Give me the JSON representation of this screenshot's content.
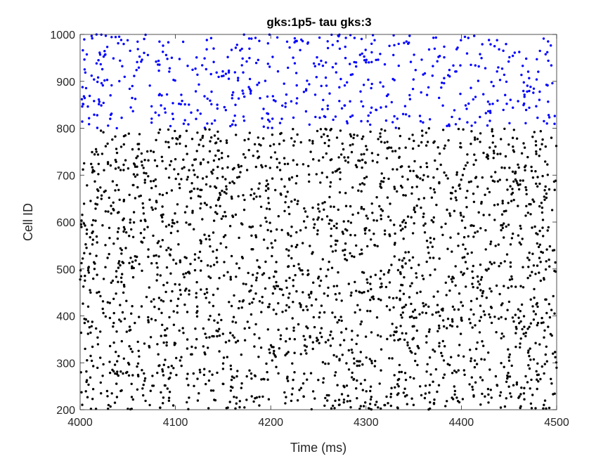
{
  "chart_data": {
    "type": "scatter",
    "title": "gks:1p5- tau gks:3",
    "xlabel": "Time (ms)",
    "ylabel": "Cell ID",
    "xlim": [
      4000,
      4500
    ],
    "ylim": [
      200,
      1000
    ],
    "xticks": [
      4000,
      4100,
      4200,
      4300,
      4400,
      4500
    ],
    "yticks": [
      200,
      300,
      400,
      500,
      600,
      700,
      800,
      900,
      1000
    ],
    "xtick_labels": [
      "4000",
      "4100",
      "4200",
      "4300",
      "4400",
      "4500"
    ],
    "ytick_labels": [
      "200",
      "300",
      "400",
      "500",
      "600",
      "700",
      "800",
      "900",
      "1000"
    ],
    "grid": false,
    "legend": "none",
    "series": [
      {
        "color": "#000000",
        "cell_range": [
          200,
          800
        ],
        "approx_spike_count": 2400,
        "points": [
          [
            4003,
            712
          ],
          [
            4011,
            645
          ],
          [
            4017,
            528
          ],
          [
            4024,
            431
          ],
          [
            4031,
            302
          ],
          [
            4038,
            756
          ],
          [
            4046,
            589
          ],
          [
            4052,
            377
          ],
          [
            4060,
            243
          ],
          [
            4068,
            684
          ],
          [
            4075,
            512
          ],
          [
            4082,
            318
          ],
          [
            4090,
            771
          ],
          [
            4097,
            604
          ],
          [
            4105,
            455
          ],
          [
            4112,
            266
          ],
          [
            4120,
            733
          ],
          [
            4127,
            559
          ],
          [
            4135,
            392
          ],
          [
            4142,
            621
          ],
          [
            4150,
            287
          ],
          [
            4158,
            478
          ],
          [
            4165,
            695
          ],
          [
            4173,
            348
          ],
          [
            4180,
            542
          ],
          [
            4188,
            209
          ],
          [
            4195,
            667
          ],
          [
            4203,
            413
          ],
          [
            4210,
            788
          ],
          [
            4218,
            576
          ],
          [
            4225,
            321
          ],
          [
            4233,
            497
          ],
          [
            4240,
            445
          ],
          [
            4248,
            702
          ],
          [
            4255,
            258
          ],
          [
            4263,
            633
          ],
          [
            4270,
            386
          ],
          [
            4278,
            521
          ],
          [
            4285,
            749
          ],
          [
            4293,
            294
          ],
          [
            4300,
            587
          ],
          [
            4308,
            436
          ],
          [
            4315,
            676
          ],
          [
            4323,
            214
          ],
          [
            4330,
            552
          ],
          [
            4338,
            363
          ],
          [
            4345,
            718
          ],
          [
            4353,
            482
          ],
          [
            4360,
            611
          ],
          [
            4368,
            275
          ],
          [
            4375,
            423
          ],
          [
            4383,
            763
          ],
          [
            4390,
            537
          ],
          [
            4398,
            338
          ],
          [
            4405,
            652
          ],
          [
            4413,
            228
          ],
          [
            4420,
            509
          ],
          [
            4428,
            741
          ],
          [
            4435,
            398
          ],
          [
            4443,
            593
          ],
          [
            4450,
            312
          ],
          [
            4458,
            687
          ],
          [
            4465,
            461
          ],
          [
            4473,
            213
          ],
          [
            4480,
            574
          ],
          [
            4488,
            729
          ],
          [
            4495,
            358
          ]
        ]
      },
      {
        "color": "#0000ff",
        "cell_range": [
          800,
          1000
        ],
        "approx_spike_count": 560,
        "points": [
          [
            4004,
            868
          ],
          [
            4012,
            912
          ],
          [
            4021,
            957
          ],
          [
            4033,
            831
          ],
          [
            4041,
            995
          ],
          [
            4052,
            884
          ],
          [
            4064,
            942
          ],
          [
            4075,
            812
          ],
          [
            4087,
            976
          ],
          [
            4098,
            903
          ],
          [
            4110,
            851
          ],
          [
            4121,
            927
          ],
          [
            4133,
            988
          ],
          [
            4144,
            842
          ],
          [
            4156,
            919
          ],
          [
            4168,
            966
          ],
          [
            4179,
            879
          ],
          [
            4191,
            821
          ],
          [
            4202,
            952
          ],
          [
            4214,
            895
          ],
          [
            4225,
            983
          ],
          [
            4237,
            836
          ],
          [
            4248,
            909
          ],
          [
            4260,
            971
          ],
          [
            4272,
            858
          ],
          [
            4283,
            937
          ],
          [
            4295,
            815
          ],
          [
            4306,
            962
          ],
          [
            4318,
            889
          ],
          [
            4329,
            998
          ],
          [
            4341,
            847
          ],
          [
            4352,
            924
          ],
          [
            4364,
            871
          ],
          [
            4376,
            952
          ],
          [
            4387,
            808
          ],
          [
            4399,
            934
          ],
          [
            4410,
            886
          ],
          [
            4422,
            979
          ],
          [
            4433,
            852
          ],
          [
            4445,
            914
          ],
          [
            4456,
            961
          ],
          [
            4468,
            839
          ],
          [
            4479,
            904
          ],
          [
            4491,
            985
          ],
          [
            4498,
            826
          ]
        ]
      }
    ]
  }
}
